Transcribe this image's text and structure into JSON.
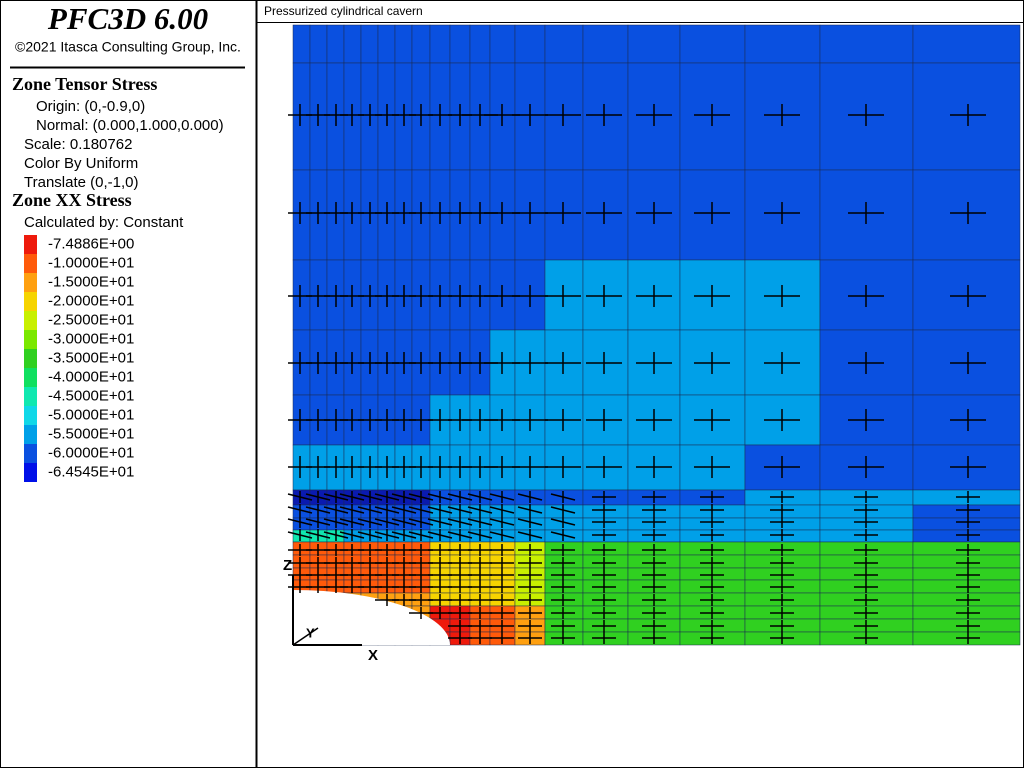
{
  "header": {
    "title": "PFC3D 6.00",
    "copyright": "©2021 Itasca Consulting Group, Inc."
  },
  "sections": [
    {
      "title": "Zone Tensor Stress",
      "lines": [
        "Origin: (0,-0.9,0)",
        "Normal: (0.000,1.000,0.000)",
        "Scale: 0.180762",
        "Color By Uniform",
        "Translate (0,-1,0)"
      ]
    },
    {
      "title": "Zone XX Stress",
      "lines": [
        "Calculated by: Constant"
      ]
    }
  ],
  "legend": {
    "items": [
      {
        "label": "-7.4886E+00",
        "color": "#ee1a0c"
      },
      {
        "label": "-1.0000E+01",
        "color": "#ff5a0a"
      },
      {
        "label": "-1.5000E+01",
        "color": "#ffa010"
      },
      {
        "label": "-2.0000E+01",
        "color": "#f6d400"
      },
      {
        "label": "-2.5000E+01",
        "color": "#c8f000"
      },
      {
        "label": "-3.0000E+01",
        "color": "#7ae800"
      },
      {
        "label": "-3.5000E+01",
        "color": "#30d020"
      },
      {
        "label": "-4.0000E+01",
        "color": "#10e060"
      },
      {
        "label": "-4.5000E+01",
        "color": "#10e8b0"
      },
      {
        "label": "-5.0000E+01",
        "color": "#10d8e8"
      },
      {
        "label": "-5.5000E+01",
        "color": "#00a0e8"
      },
      {
        "label": "-6.0000E+01",
        "color": "#0a50e0"
      },
      {
        "label": "-6.4545E+01",
        "color": "#0010e8"
      }
    ]
  },
  "viewport": {
    "title": "Pressurized cylindrical cavern",
    "axes": {
      "x": "X",
      "y": "Y",
      "z": "Z"
    }
  }
}
